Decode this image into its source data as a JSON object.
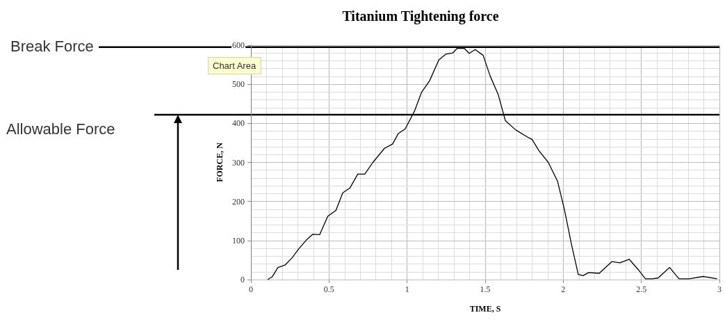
{
  "chart_data": {
    "type": "line",
    "title": "Titanium Tightening force",
    "xlabel": "TIME, S",
    "ylabel": "FORCE, N",
    "x": [
      0.107,
      0.136,
      0.173,
      0.218,
      0.262,
      0.307,
      0.359,
      0.396,
      0.44,
      0.492,
      0.544,
      0.588,
      0.633,
      0.684,
      0.729,
      0.781,
      0.855,
      0.907,
      0.944,
      0.988,
      1.047,
      1.092,
      1.144,
      1.203,
      1.247,
      1.292,
      1.321,
      1.339,
      1.366,
      1.398,
      1.436,
      1.487,
      1.532,
      1.584,
      1.629,
      1.696,
      1.77,
      1.8,
      1.844,
      1.904,
      1.963,
      2.007,
      2.052,
      2.096,
      2.126,
      2.163,
      2.23,
      2.311,
      2.363,
      2.422,
      2.481,
      2.526,
      2.57,
      2.607,
      2.681,
      2.741,
      2.807,
      2.896,
      2.985
    ],
    "series": [
      {
        "color": "#000000",
        "values": [
          0,
          7,
          31,
          37,
          55,
          79,
          103,
          116,
          115,
          162,
          177,
          222,
          234,
          270,
          270,
          300,
          336,
          347,
          374,
          386,
          431,
          479,
          509,
          562,
          577,
          580,
          592,
          592,
          592,
          579,
          589,
          574,
          521,
          473,
          407,
          383,
          365,
          359,
          330,
          300,
          252,
          180,
          91,
          13,
          10,
          18,
          16,
          46,
          43,
          52,
          25,
          2,
          2,
          4,
          31,
          2,
          2,
          8,
          2
        ]
      }
    ],
    "xlim": [
      0,
      3
    ],
    "xticks": [
      0,
      0.5,
      1,
      1.5,
      2,
      2.5,
      3
    ],
    "ylim": [
      0,
      600
    ],
    "yticks": [
      0,
      100,
      200,
      300,
      400,
      500,
      600
    ],
    "grid": true,
    "marker": "none",
    "line_style": "solid",
    "ref_lines": [
      {
        "axis": "y",
        "value": 595,
        "label": "Break Force",
        "color": "#000000"
      },
      {
        "axis": "y",
        "value": 422,
        "label": "Allowable Force",
        "color": "#000000"
      }
    ],
    "annotations": [
      "Chart Area"
    ]
  }
}
